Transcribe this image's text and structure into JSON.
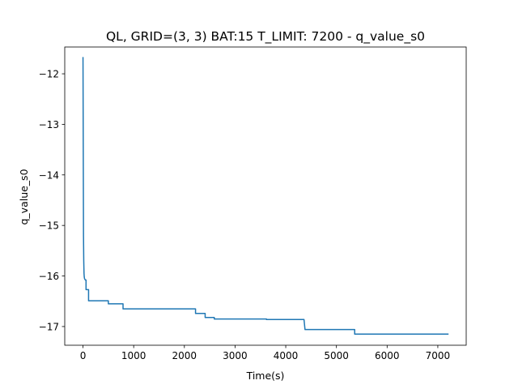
{
  "chart_data": {
    "type": "line",
    "title": "QL, GRID=(3, 3)   BAT:15 T_LIMIT: 7200 - q_value_s0",
    "xlabel": "Time(s)",
    "ylabel": "q_value_s0",
    "xlim": [
      -360,
      7560
    ],
    "ylim": [
      -17.37,
      -11.47
    ],
    "xticks": [
      0,
      1000,
      2000,
      3000,
      4000,
      5000,
      6000,
      7000
    ],
    "xtick_labels": [
      "0",
      "1000",
      "2000",
      "3000",
      "4000",
      "5000",
      "6000",
      "7000"
    ],
    "yticks": [
      -12,
      -13,
      -14,
      -15,
      -16,
      -17
    ],
    "ytick_labels": [
      "−12",
      "−13",
      "−14",
      "−15",
      "−16",
      "−17"
    ],
    "grid": false,
    "series": [
      {
        "color": "#1f77b4",
        "x": [
          0,
          5,
          10,
          15,
          20,
          25,
          30,
          40,
          50,
          60,
          60,
          90,
          90,
          110,
          110,
          500,
          500,
          790,
          790,
          2220,
          2220,
          2410,
          2410,
          2590,
          2590,
          3620,
          3620,
          4360,
          4380,
          5360,
          5360,
          7200
        ],
        "y": [
          -11.68,
          -13.5,
          -15.2,
          -15.7,
          -15.95,
          -16.02,
          -16.05,
          -16.07,
          -16.08,
          -16.08,
          -16.27,
          -16.27,
          -16.27,
          -16.27,
          -16.49,
          -16.49,
          -16.55,
          -16.55,
          -16.65,
          -16.65,
          -16.74,
          -16.74,
          -16.82,
          -16.82,
          -16.85,
          -16.85,
          -16.86,
          -16.86,
          -17.06,
          -17.06,
          -17.15,
          -17.15
        ]
      }
    ]
  }
}
